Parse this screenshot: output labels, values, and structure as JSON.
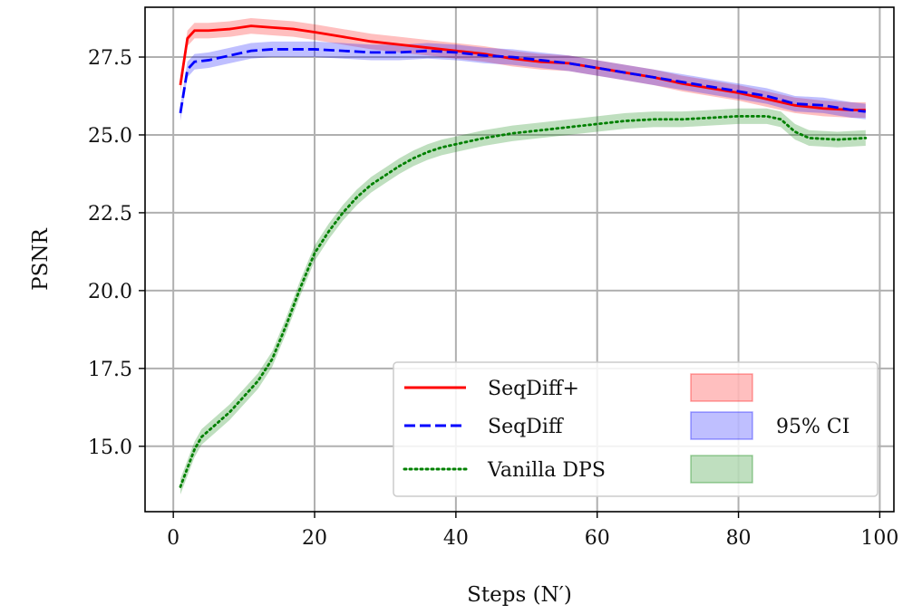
{
  "chart_data": {
    "type": "line",
    "title": "",
    "xlabel": "Steps (N′)",
    "ylabel": "PSNR",
    "xlim": [
      -4,
      102
    ],
    "ylim": [
      12.9,
      29.1
    ],
    "xticks": [
      0,
      20,
      40,
      60,
      80,
      100
    ],
    "xtick_labels": [
      "0",
      "20",
      "40",
      "60",
      "80",
      "100"
    ],
    "yticks": [
      15.0,
      17.5,
      20.0,
      22.5,
      25.0,
      27.5
    ],
    "ytick_labels": [
      "15.0",
      "17.5",
      "20.0",
      "22.5",
      "25.0",
      "27.5"
    ],
    "grid": true,
    "legend_position": "lower-right",
    "ci_label": "95% CI",
    "series": [
      {
        "name": "SeqDiff+",
        "color": "#ff0000",
        "style": "solid",
        "ci_color": "#ff0000",
        "ci_width": 0.25,
        "x": [
          1,
          2,
          3,
          5,
          8,
          11,
          14,
          17,
          20,
          24,
          28,
          32,
          36,
          40,
          44,
          48,
          52,
          56,
          60,
          64,
          68,
          72,
          76,
          80,
          84,
          88,
          92,
          96,
          98
        ],
        "values": [
          26.6,
          28.1,
          28.35,
          28.35,
          28.4,
          28.5,
          28.45,
          28.4,
          28.3,
          28.15,
          28.0,
          27.9,
          27.8,
          27.7,
          27.6,
          27.45,
          27.35,
          27.3,
          27.15,
          27.0,
          26.85,
          26.65,
          26.5,
          26.35,
          26.15,
          25.95,
          25.85,
          25.8,
          25.8
        ]
      },
      {
        "name": "SeqDiff",
        "color": "#0000ff",
        "style": "dashed",
        "ci_color": "#0000ff",
        "ci_width": 0.25,
        "x": [
          1,
          2,
          3,
          5,
          8,
          11,
          14,
          17,
          20,
          24,
          28,
          32,
          36,
          40,
          44,
          48,
          52,
          56,
          60,
          64,
          68,
          72,
          76,
          80,
          84,
          88,
          92,
          96,
          98
        ],
        "values": [
          25.7,
          27.1,
          27.35,
          27.4,
          27.55,
          27.7,
          27.75,
          27.75,
          27.75,
          27.7,
          27.65,
          27.65,
          27.7,
          27.65,
          27.55,
          27.5,
          27.4,
          27.3,
          27.15,
          27.0,
          26.85,
          26.7,
          26.55,
          26.4,
          26.25,
          26.0,
          25.95,
          25.8,
          25.75
        ]
      },
      {
        "name": "Vanilla DPS",
        "color": "#008000",
        "style": "dotted",
        "ci_color": "#008000",
        "ci_width": 0.25,
        "x": [
          1,
          2,
          3,
          4,
          6,
          8,
          10,
          12,
          14,
          16,
          18,
          20,
          22,
          24,
          26,
          28,
          30,
          32,
          34,
          36,
          38,
          40,
          44,
          48,
          52,
          56,
          60,
          64,
          68,
          72,
          76,
          80,
          84,
          86,
          88,
          90,
          94,
          98
        ],
        "values": [
          13.7,
          14.3,
          14.9,
          15.3,
          15.7,
          16.1,
          16.6,
          17.1,
          17.8,
          18.9,
          20.1,
          21.2,
          21.9,
          22.5,
          23.0,
          23.4,
          23.7,
          24.0,
          24.25,
          24.45,
          24.6,
          24.7,
          24.9,
          25.05,
          25.15,
          25.25,
          25.35,
          25.45,
          25.5,
          25.5,
          25.55,
          25.6,
          25.6,
          25.5,
          25.1,
          24.9,
          24.85,
          24.9
        ]
      }
    ]
  }
}
